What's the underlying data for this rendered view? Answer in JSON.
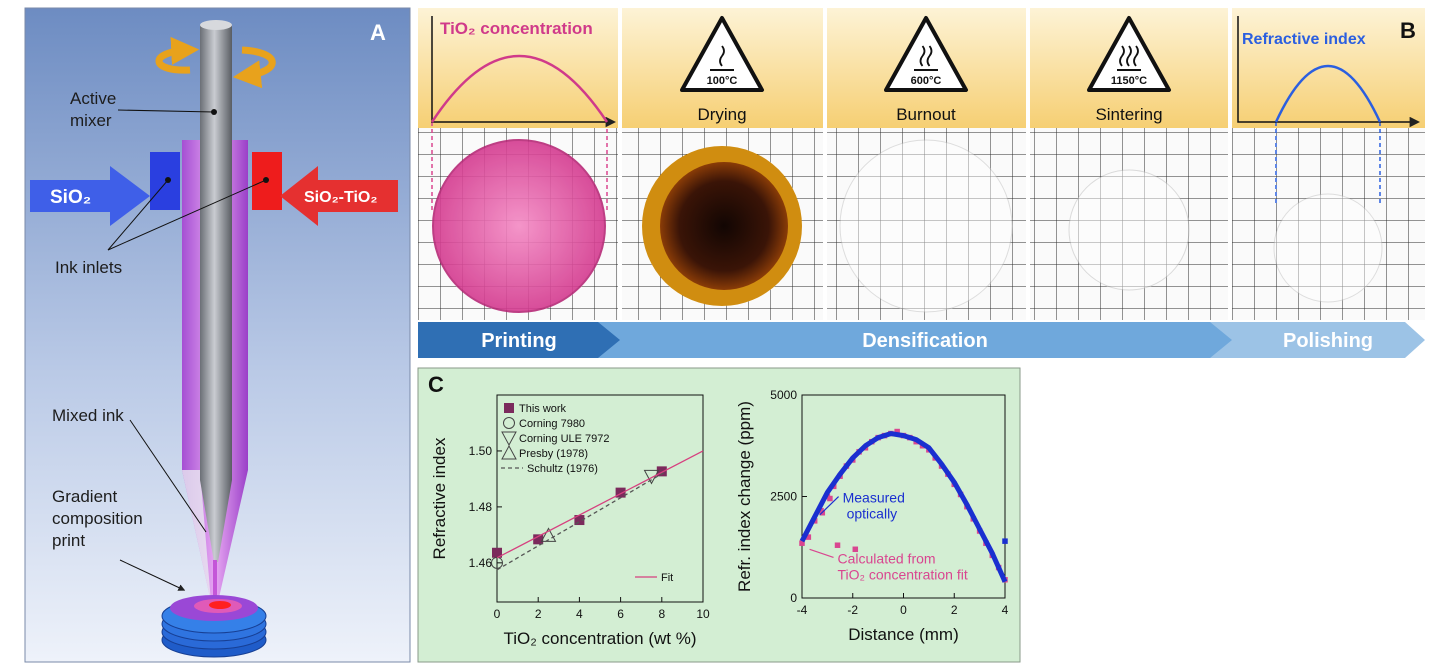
{
  "panel_a": {
    "letter": "A",
    "labels": {
      "active_mixer": "Active mixer",
      "sio2": "SiO₂",
      "sio2_tio2": "SiO₂-TiO₂",
      "ink_inlets": "Ink inlets",
      "mixed_ink": "Mixed ink",
      "print": "Gradient composition print"
    }
  },
  "panel_b": {
    "letter": "B",
    "concentration": "TiO₂ concentration",
    "refractive_index": "Refractive index",
    "steps": [
      {
        "temperature": "100°C",
        "label": "Drying"
      },
      {
        "temperature": "600°C",
        "label": "Burnout"
      },
      {
        "temperature": "1150°C",
        "label": "Sintering"
      }
    ],
    "stages": [
      "Printing",
      "Densification",
      "Polishing"
    ]
  },
  "panel_c": {
    "letter": "C"
  },
  "chart_data": [
    {
      "type": "scatter",
      "xlabel": "TiO₂ concentration (wt %)",
      "ylabel": "Refractive index",
      "xlim": [
        0,
        10
      ],
      "xticks": [
        0,
        2,
        4,
        6,
        8,
        10
      ],
      "ylim": [
        1.446,
        1.52
      ],
      "yticks": [
        1.46,
        1.48,
        {
          "value": 1.5,
          "label": "1.50"
        }
      ],
      "series": [
        {
          "name": "This work",
          "color": "#7b2a5c",
          "marker": "square",
          "legend": "upper left",
          "x": [
            0,
            2,
            4,
            6,
            8
          ],
          "values": [
            1.4636,
            1.4684,
            1.4753,
            1.4851,
            1.4927
          ]
        },
        {
          "name": "Corning 7980",
          "color": "#444444",
          "marker": "circle",
          "legend": "upper left",
          "x": [
            0
          ],
          "values": [
            1.46
          ]
        },
        {
          "name": "Corning ULE 7972",
          "color": "#444444",
          "marker": "triangle-down",
          "legend": "upper left",
          "x": [
            7.5
          ],
          "values": [
            1.4909
          ]
        },
        {
          "name": "Presby (1978)",
          "color": "#444444",
          "marker": "triangle-up",
          "legend": "upper left",
          "x": [
            2.5
          ],
          "values": [
            1.4698
          ]
        },
        {
          "name": "Schultz (1976)",
          "color": "#555555",
          "marker": "dashed-line",
          "legend": "upper left",
          "x": [
            0,
            8.2
          ],
          "values": [
            1.4575,
            1.4927
          ]
        },
        {
          "name": "Fit",
          "color": "#d6407f",
          "marker": "line",
          "legend": "lower right",
          "x": [
            0,
            10
          ],
          "values": [
            1.4618,
            1.5
          ]
        }
      ]
    },
    {
      "type": "scatter",
      "xlabel": "Distance (mm)",
      "ylabel": "Refr. index change (ppm)",
      "xlim": [
        -4,
        4
      ],
      "xticks": [
        -4,
        -2,
        0,
        2,
        4
      ],
      "ylim": [
        0,
        5000
      ],
      "yticks": [
        0,
        2500,
        5000
      ],
      "annotations": [
        "Measured optically",
        "Calculated from TiO₂ concentration fit"
      ],
      "series": [
        {
          "color": "#d94690",
          "marker": "square",
          "x": [
            -4,
            -3.75,
            -3.5,
            -3.25,
            -3,
            -2.75,
            -2.5,
            -2.25,
            -2,
            -1.75,
            -1.5,
            -1.25,
            -1,
            -0.75,
            -0.5,
            -0.25,
            0,
            0.25,
            0.5,
            0.75,
            1,
            1.25,
            1.5,
            1.75,
            2,
            2.25,
            2.5,
            2.75,
            3,
            3.25,
            3.5,
            3.75,
            4,
            -3.2,
            -2.9,
            -2.6,
            -1.9
          ],
          "values": [
            1350,
            1500,
            1900,
            2150,
            2500,
            2750,
            3000,
            3250,
            3400,
            3600,
            3700,
            3850,
            3950,
            4000,
            4050,
            4100,
            4000,
            3950,
            3850,
            3750,
            3650,
            3450,
            3250,
            3050,
            2800,
            2550,
            2250,
            1950,
            1650,
            1350,
            1050,
            750,
            450,
            2100,
            2450,
            1300,
            1200
          ]
        },
        {
          "color": "#1a2fd0",
          "marker": "line",
          "x": [
            -4,
            -3.5,
            -3,
            -2.5,
            -2,
            -1.5,
            -1,
            -0.5,
            0,
            0.5,
            1,
            1.5,
            2,
            2.5,
            3,
            3.5,
            4
          ],
          "values": [
            1400,
            2000,
            2600,
            3050,
            3450,
            3750,
            3950,
            4050,
            4000,
            3900,
            3700,
            3300,
            2850,
            2300,
            1700,
            1100,
            400
          ]
        },
        {
          "color": "#1a2fd0",
          "marker": "square",
          "x": [
            4
          ],
          "values": [
            1400
          ]
        }
      ]
    }
  ]
}
